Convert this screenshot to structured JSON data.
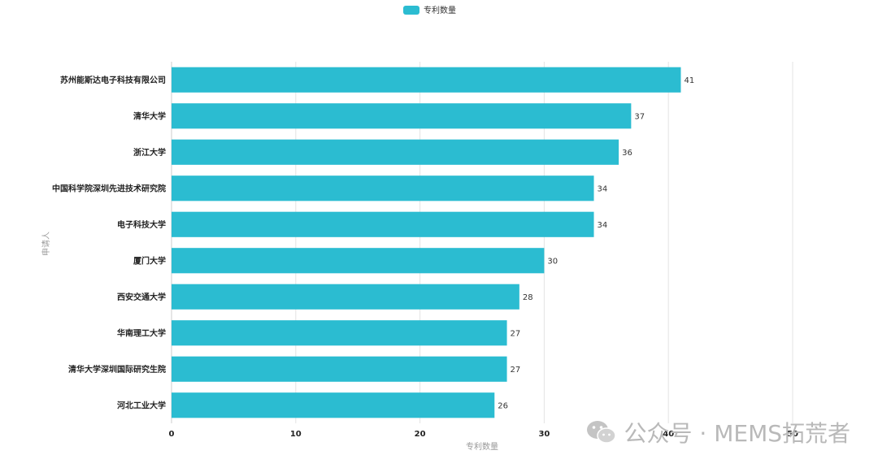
{
  "chart_data": {
    "type": "bar",
    "orientation": "horizontal",
    "categories": [
      "苏州能斯达电子科技有限公司",
      "清华大学",
      "浙江大学",
      "中国科学院深圳先进技术研究院",
      "电子科技大学",
      "厦门大学",
      "西安交通大学",
      "华南理工大学",
      "清华大学深圳国际研究生院",
      "河北工业大学"
    ],
    "series": [
      {
        "name": "专利数量",
        "values": [
          41,
          37,
          36,
          34,
          34,
          30,
          28,
          27,
          27,
          26
        ],
        "color": "#2bbcd1"
      }
    ],
    "xlabel": "专利数量",
    "ylabel": "申请人",
    "xlim": [
      0,
      50
    ],
    "xticks": [
      0,
      10,
      20,
      30,
      40,
      50
    ],
    "grid": true,
    "legend_position": "top-center"
  },
  "watermark": {
    "text": "公众号 · MEMS拓荒者",
    "icon": "wechat-icon"
  }
}
